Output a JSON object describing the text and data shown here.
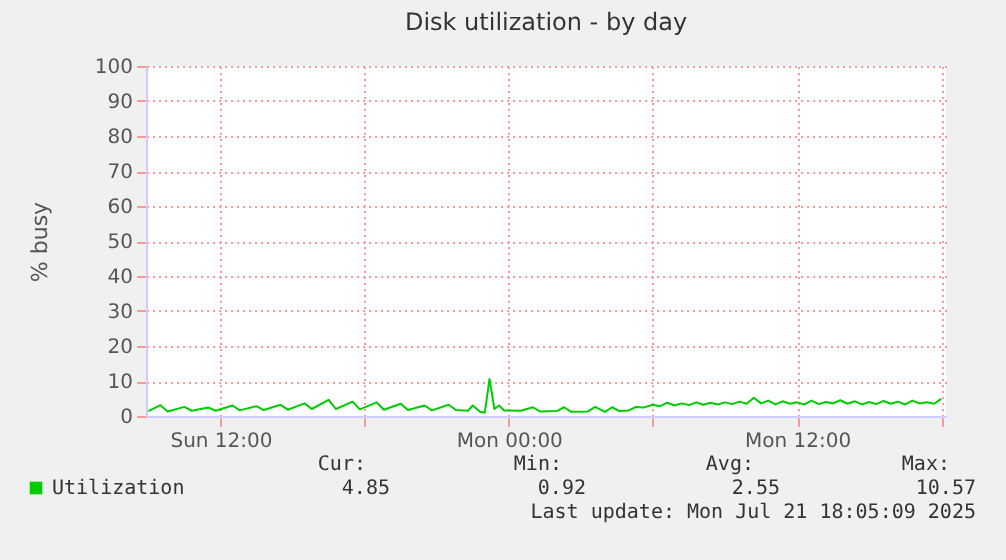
{
  "chart_data": {
    "type": "line",
    "title": "Disk utilization - by day",
    "ylabel": "% busy",
    "x": [
      "2025-07-20T09:00",
      "2025-07-20T09:30",
      "2025-07-20T09:48",
      "2025-07-20T10:30",
      "2025-07-20T10:48",
      "2025-07-20T11:30",
      "2025-07-20T11:48",
      "2025-07-20T12:30",
      "2025-07-20T12:48",
      "2025-07-20T13:30",
      "2025-07-20T13:48",
      "2025-07-20T14:30",
      "2025-07-20T14:48",
      "2025-07-20T15:30",
      "2025-07-20T15:48",
      "2025-07-20T16:30",
      "2025-07-20T16:48",
      "2025-07-20T17:30",
      "2025-07-20T17:48",
      "2025-07-20T18:30",
      "2025-07-20T18:48",
      "2025-07-20T19:30",
      "2025-07-20T19:48",
      "2025-07-20T20:30",
      "2025-07-20T20:48",
      "2025-07-20T21:30",
      "2025-07-20T21:48",
      "2025-07-20T22:18",
      "2025-07-20T22:30",
      "2025-07-20T22:48",
      "2025-07-20T23:00",
      "2025-07-20T23:12",
      "2025-07-20T23:24",
      "2025-07-20T23:36",
      "2025-07-20T23:48",
      "2025-07-21T00:30",
      "2025-07-21T01:00",
      "2025-07-21T01:18",
      "2025-07-21T02:00",
      "2025-07-21T02:18",
      "2025-07-21T02:36",
      "2025-07-21T03:18",
      "2025-07-21T03:36",
      "2025-07-21T04:00",
      "2025-07-21T04:18",
      "2025-07-21T04:36",
      "2025-07-21T05:00",
      "2025-07-21T05:18",
      "2025-07-21T05:36",
      "2025-07-21T06:00",
      "2025-07-21T06:18",
      "2025-07-21T06:36",
      "2025-07-21T06:54",
      "2025-07-21T07:12",
      "2025-07-21T07:30",
      "2025-07-21T07:48",
      "2025-07-21T08:06",
      "2025-07-21T08:24",
      "2025-07-21T08:42",
      "2025-07-21T09:00",
      "2025-07-21T09:18",
      "2025-07-21T09:36",
      "2025-07-21T09:54",
      "2025-07-21T10:12",
      "2025-07-21T10:30",
      "2025-07-21T10:48",
      "2025-07-21T11:06",
      "2025-07-21T11:24",
      "2025-07-21T11:42",
      "2025-07-21T12:00",
      "2025-07-21T12:18",
      "2025-07-21T12:36",
      "2025-07-21T12:54",
      "2025-07-21T13:12",
      "2025-07-21T13:30",
      "2025-07-21T13:48",
      "2025-07-21T14:06",
      "2025-07-21T14:24",
      "2025-07-21T14:42",
      "2025-07-21T15:00",
      "2025-07-21T15:18",
      "2025-07-21T15:36",
      "2025-07-21T15:54",
      "2025-07-21T16:12",
      "2025-07-21T16:30",
      "2025-07-21T16:48",
      "2025-07-21T17:06",
      "2025-07-21T17:24",
      "2025-07-21T17:42",
      "2025-07-21T18:00"
    ],
    "series": [
      {
        "name": "Utilization",
        "color": "#00cc00",
        "values": [
          1.4,
          3.1,
          1.3,
          2.6,
          1.5,
          2.4,
          1.5,
          3.0,
          1.6,
          2.8,
          1.7,
          3.2,
          1.8,
          3.6,
          2.0,
          4.6,
          2.0,
          4.1,
          1.9,
          3.9,
          1.8,
          3.5,
          1.7,
          3.0,
          1.6,
          3.2,
          1.7,
          1.5,
          3.0,
          1.2,
          0.9,
          10.6,
          2.0,
          3.0,
          1.6,
          1.5,
          2.5,
          1.3,
          1.4,
          2.5,
          1.2,
          1.3,
          2.6,
          1.2,
          2.5,
          1.4,
          1.6,
          2.6,
          2.4,
          3.2,
          2.8,
          3.8,
          3.0,
          3.6,
          3.1,
          3.9,
          3.2,
          3.8,
          3.3,
          3.9,
          3.4,
          4.1,
          3.5,
          5.2,
          3.6,
          4.4,
          3.3,
          4.2,
          3.5,
          3.9,
          3.3,
          4.4,
          3.4,
          4.0,
          3.6,
          4.5,
          3.5,
          4.2,
          3.3,
          4.0,
          3.4,
          4.3,
          3.5,
          4.1,
          3.3,
          4.4,
          3.6,
          3.9,
          3.5,
          4.9
        ]
      }
    ],
    "xlim": [
      "2025-07-20T08:54",
      "2025-07-21T18:12"
    ],
    "xticks": [
      {
        "value": "2025-07-20T12:00",
        "label": "Sun 12:00"
      },
      {
        "value": "2025-07-20T18:00",
        "label": null
      },
      {
        "value": "2025-07-21T00:00",
        "label": "Mon 00:00"
      },
      {
        "value": "2025-07-21T06:00",
        "label": null
      },
      {
        "value": "2025-07-21T12:00",
        "label": "Mon 12:00"
      },
      {
        "value": "2025-07-21T18:00",
        "label": null
      }
    ],
    "ylim": [
      0,
      100
    ],
    "yticks": [
      0,
      10,
      20,
      30,
      40,
      50,
      60,
      70,
      80,
      90,
      100
    ],
    "grid": true,
    "legend": "bottom left",
    "line_style": "solid",
    "marker": "none",
    "annotations": [
      "Cur:",
      "Min:",
      "Avg:",
      "Max:",
      "4.85",
      "0.92",
      "2.55",
      "10.57",
      "Last update: Mon Jul 21 18:05:09 2025"
    ]
  }
}
